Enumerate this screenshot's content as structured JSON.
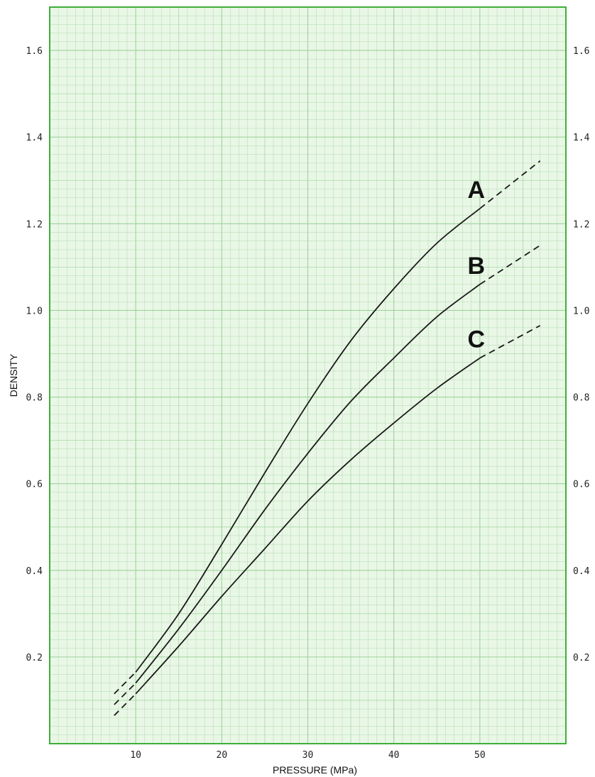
{
  "chart_data": {
    "type": "line",
    "title": "",
    "xlabel": "PRESSURE (MPa)",
    "ylabel": "DENSITY",
    "xlim": [
      0,
      60
    ],
    "ylim": [
      0,
      1.7
    ],
    "x_ticks": [
      10,
      20,
      30,
      40,
      50
    ],
    "x_tick_labels": [
      "10",
      "20",
      "30",
      "40",
      "50"
    ],
    "y_ticks": [
      0.2,
      0.4,
      0.6,
      0.8,
      1.0,
      1.2,
      1.4,
      1.6
    ],
    "y_tick_labels_left": [
      "0.2",
      "0.4",
      "0.6",
      "0.8",
      "1.0",
      "1.2",
      "1.4",
      "1.6"
    ],
    "y_tick_labels_right": [
      "0.2",
      "0.4",
      "0.6",
      "0.8",
      "1.0",
      "1.2",
      "1.4",
      "1.6"
    ],
    "grid": true,
    "grid_color": "#9fd39c",
    "background_color": "#e9f7e6",
    "frame_color": "#3fae3a",
    "line_color": "#1a1a1a",
    "series": [
      {
        "name": "A",
        "x": [
          7.5,
          10,
          15,
          20,
          25,
          30,
          35,
          40,
          45,
          50,
          57
        ],
        "y": [
          0.115,
          0.165,
          0.3,
          0.46,
          0.625,
          0.785,
          0.93,
          1.05,
          1.155,
          1.235,
          1.345
        ],
        "dashed_below": 10,
        "dashed_above": 50
      },
      {
        "name": "B",
        "x": [
          7.5,
          10,
          15,
          20,
          25,
          30,
          35,
          40,
          45,
          50,
          57
        ],
        "y": [
          0.09,
          0.14,
          0.265,
          0.4,
          0.54,
          0.67,
          0.79,
          0.89,
          0.985,
          1.06,
          1.15
        ],
        "dashed_below": 10,
        "dashed_above": 50
      },
      {
        "name": "C",
        "x": [
          7.5,
          10,
          15,
          20,
          25,
          30,
          35,
          40,
          45,
          50,
          57
        ],
        "y": [
          0.065,
          0.115,
          0.225,
          0.34,
          0.45,
          0.56,
          0.655,
          0.74,
          0.82,
          0.89,
          0.965
        ],
        "dashed_below": 10,
        "dashed_above": 50
      }
    ]
  }
}
